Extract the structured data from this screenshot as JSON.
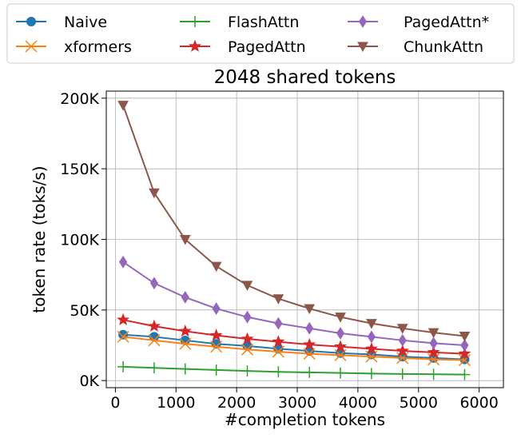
{
  "chart_data": {
    "type": "line",
    "title": "2048 shared tokens",
    "xlabel": "#completion tokens",
    "ylabel": "token rate (toks/s)",
    "xlim": [
      -150,
      6400
    ],
    "ylim": [
      -5000,
      205000
    ],
    "xticks": [
      0,
      1000,
      2000,
      3000,
      4000,
      5000,
      6000
    ],
    "xtick_labels": [
      "0",
      "1000",
      "2000",
      "3000",
      "4000",
      "5000",
      "6000"
    ],
    "yticks": [
      0,
      50000,
      100000,
      150000,
      200000
    ],
    "ytick_labels": [
      "0K",
      "50K",
      "100K",
      "150K",
      "200K"
    ],
    "grid": true,
    "legend_position": "top, outside plot, 3 columns",
    "x": [
      128,
      640,
      1152,
      1664,
      2176,
      2688,
      3200,
      3712,
      4224,
      4736,
      5248,
      5760
    ],
    "series": [
      {
        "name": "Naive",
        "color": "#1f77b4",
        "marker": "circle",
        "values": [
          32500,
          31000,
          28500,
          26000,
          24500,
          22500,
          21000,
          19500,
          18500,
          17000,
          16000,
          15000
        ]
      },
      {
        "name": "xformers",
        "color": "#ff7f0e",
        "marker": "x",
        "values": [
          31000,
          28500,
          26000,
          24000,
          22000,
          20500,
          19000,
          18000,
          17000,
          16000,
          15000,
          14500
        ]
      },
      {
        "name": "FlashAttn",
        "color": "#2ca02c",
        "marker": "plus",
        "values": [
          9800,
          9000,
          8200,
          7500,
          6800,
          6200,
          5800,
          5400,
          5000,
          4700,
          4500,
          4300
        ]
      },
      {
        "name": "PagedAttn",
        "color": "#d62728",
        "marker": "star",
        "values": [
          43000,
          38500,
          35000,
          32000,
          29500,
          27500,
          25500,
          24000,
          22500,
          21000,
          20000,
          19000
        ]
      },
      {
        "name": "PagedAttn*",
        "color": "#9467bd",
        "marker": "diamond",
        "values": [
          84000,
          69000,
          59000,
          51000,
          45000,
          40500,
          37000,
          33500,
          31000,
          28500,
          26500,
          25000
        ]
      },
      {
        "name": "ChunkAttn",
        "color": "#8c564b",
        "marker": "triangle-down",
        "values": [
          195000,
          133000,
          100000,
          81000,
          67500,
          58000,
          51000,
          45000,
          40500,
          37000,
          34000,
          31500
        ]
      }
    ]
  }
}
